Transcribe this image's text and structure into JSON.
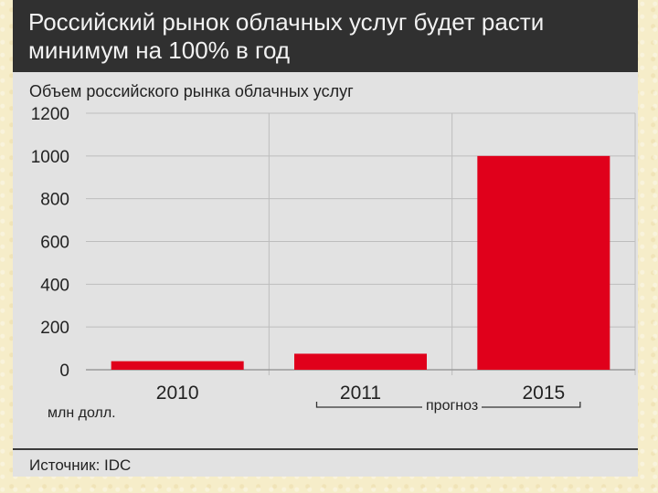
{
  "header": {
    "title": "Российский рынок облачных услуг будет расти минимум на 100% в год"
  },
  "chart_data": {
    "type": "bar",
    "title": "Объем российского рынка облачных услуг",
    "categories": [
      "2010",
      "2011",
      "2015"
    ],
    "values": [
      40,
      75,
      1000
    ],
    "ylim": [
      0,
      1200
    ],
    "yticks": [
      0,
      200,
      400,
      600,
      800,
      1000,
      1200
    ],
    "units": "млн долл.",
    "forecast_label": "прогноз",
    "bar_color": "#e0001b",
    "grid": true
  },
  "footer": {
    "source": "Источник: IDC"
  }
}
